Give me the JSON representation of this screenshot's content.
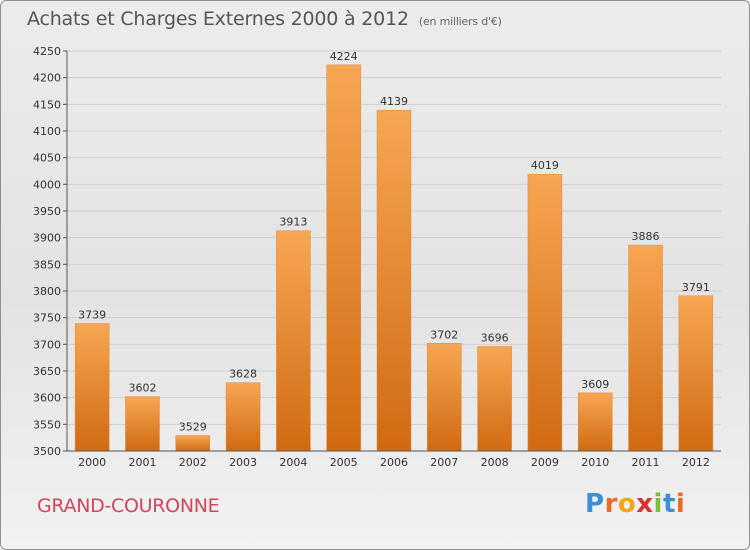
{
  "header": {
    "title": "Achats et Charges Externes 2000 à 2012",
    "subtitle": "(en milliers d'€)"
  },
  "location": "GRAND-COURONNE",
  "brand": {
    "letters": [
      "P",
      "r",
      "o",
      "x",
      "i",
      "t",
      "i"
    ],
    "colors": [
      "#3a8fd6",
      "#e96b2b",
      "#f2a71b",
      "#d8312e",
      "#7cbf36",
      "#3a8fd6",
      "#e96b2b"
    ]
  },
  "colors": {
    "bar_light": "#f7a653",
    "bar_dark": "#d06a12",
    "grid": "#cfcfcf",
    "text": "#333333"
  },
  "chart_data": {
    "type": "bar",
    "title": "Achats et Charges Externes 2000 à 2012",
    "subtitle": "(en milliers d'€)",
    "categories": [
      "2000",
      "2001",
      "2002",
      "2003",
      "2004",
      "2005",
      "2006",
      "2007",
      "2008",
      "2009",
      "2010",
      "2011",
      "2012"
    ],
    "values": [
      3739,
      3602,
      3529,
      3628,
      3913,
      4224,
      4139,
      3702,
      3696,
      4019,
      3609,
      3886,
      3791
    ],
    "ylim": [
      3500,
      4250
    ],
    "yticks": [
      3500,
      3550,
      3600,
      3650,
      3700,
      3750,
      3800,
      3850,
      3900,
      3950,
      4000,
      4050,
      4100,
      4150,
      4200,
      4250
    ],
    "grid": true,
    "legend": "none"
  }
}
